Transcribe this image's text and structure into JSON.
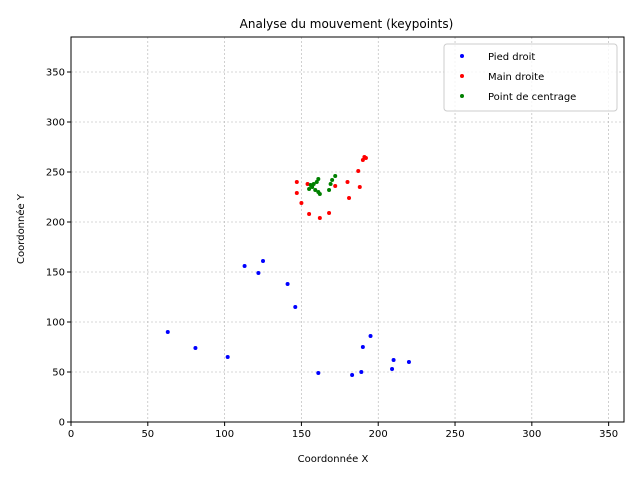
{
  "chart_data": {
    "type": "scatter",
    "title": "Analyse du mouvement (keypoints)",
    "xlabel": "Coordonnée X",
    "ylabel": "Coordonnée Y",
    "xlim": [
      0,
      360
    ],
    "ylim": [
      0,
      385
    ],
    "xticks": [
      0,
      50,
      100,
      150,
      200,
      250,
      300,
      350
    ],
    "yticks": [
      0,
      50,
      100,
      150,
      200,
      250,
      300,
      350
    ],
    "grid": true,
    "legend_position": "top-right",
    "series": [
      {
        "name": "Pied droit",
        "color": "#0000ff",
        "points": [
          [
            63,
            90
          ],
          [
            81,
            74
          ],
          [
            102,
            65
          ],
          [
            113,
            156
          ],
          [
            122,
            149
          ],
          [
            125,
            161
          ],
          [
            141,
            138
          ],
          [
            146,
            115
          ],
          [
            161,
            49
          ],
          [
            183,
            47
          ],
          [
            189,
            50
          ],
          [
            190,
            75
          ],
          [
            195,
            86
          ],
          [
            209,
            53
          ],
          [
            210,
            62
          ],
          [
            220,
            60
          ]
        ]
      },
      {
        "name": "Main droite",
        "color": "#ff0000",
        "points": [
          [
            147,
            240
          ],
          [
            147,
            229
          ],
          [
            150,
            219
          ],
          [
            154,
            238
          ],
          [
            155,
            208
          ],
          [
            162,
            204
          ],
          [
            168,
            209
          ],
          [
            172,
            236
          ],
          [
            180,
            240
          ],
          [
            181,
            224
          ],
          [
            187,
            251
          ],
          [
            188,
            235
          ],
          [
            190,
            262
          ],
          [
            191,
            265
          ],
          [
            192,
            264
          ]
        ]
      },
      {
        "name": "Point de centrage",
        "color": "#008000",
        "points": [
          [
            155,
            233
          ],
          [
            156,
            237
          ],
          [
            157,
            235
          ],
          [
            158,
            238
          ],
          [
            159,
            232
          ],
          [
            160,
            240
          ],
          [
            161,
            230
          ],
          [
            161,
            243
          ],
          [
            162,
            228
          ],
          [
            168,
            232
          ],
          [
            169,
            238
          ],
          [
            170,
            242
          ],
          [
            172,
            246
          ]
        ]
      }
    ]
  }
}
